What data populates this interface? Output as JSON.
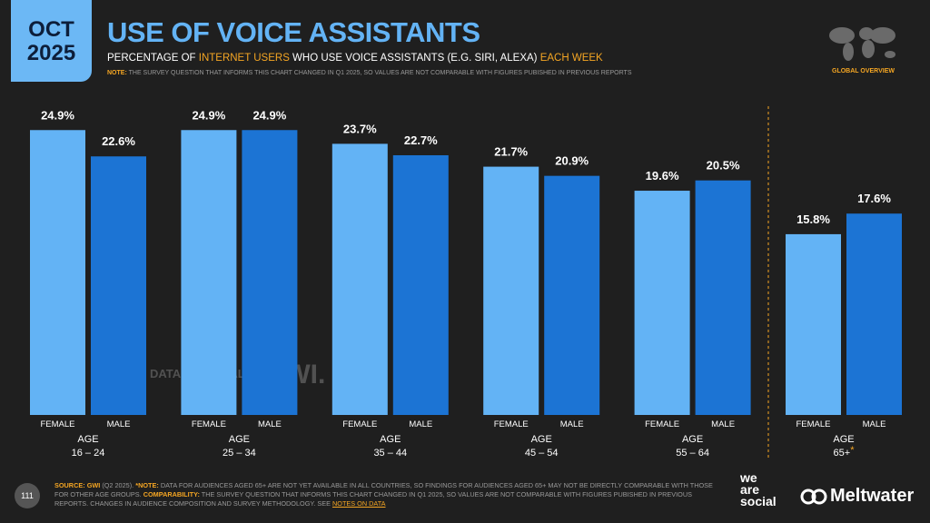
{
  "header": {
    "date_month": "OCT",
    "date_year": "2025",
    "title": "USE OF VOICE ASSISTANTS",
    "subtitle_parts": [
      "PERCENTAGE OF ",
      "INTERNET USERS",
      " WHO USE VOICE ASSISTANTS (E.G. SIRI, ALEXA) ",
      "EACH WEEK"
    ],
    "note_label": "NOTE:",
    "note": "THE SURVEY QUESTION THAT INFORMS THIS CHART CHANGED IN Q1 2025, SO VALUES ARE NOT COMPARABLE WITH FIGURES PUBISHED IN PREVIOUS REPORTS",
    "section": "GLOBAL OVERVIEW"
  },
  "chart_data": {
    "type": "bar",
    "categories": [
      "16 – 24",
      "25 – 34",
      "35 – 44",
      "45 – 54",
      "55 – 64",
      "65+"
    ],
    "category_title": "AGE",
    "footnote_marks": [
      null,
      null,
      null,
      null,
      null,
      "*"
    ],
    "series": [
      {
        "name": "FEMALE",
        "color": "#63b3f5",
        "values": [
          24.9,
          24.9,
          23.7,
          21.7,
          19.6,
          15.8
        ],
        "value_labels": [
          "24.9%",
          "24.9%",
          "23.7%",
          "21.7%",
          "19.6%",
          "15.8%"
        ]
      },
      {
        "name": "MALE",
        "color": "#1c74d4",
        "values": [
          22.6,
          24.9,
          22.7,
          20.9,
          20.5,
          17.6
        ],
        "value_labels": [
          "22.6%",
          "24.9%",
          "22.7%",
          "20.9%",
          "20.5%",
          "17.6%"
        ]
      }
    ],
    "ylim": [
      0,
      25
    ]
  },
  "watermarks": [
    "DATAREPORTAL",
    "GWI."
  ],
  "footer": {
    "source_label": "SOURCE:",
    "source": "GWI",
    "source_detail": "(Q2 2025).",
    "note_label": "*NOTE:",
    "note": "DATA FOR AUDIENCES AGED 65+ ARE NOT YET AVAILABLE IN ALL COUNTRIES, SO FINDINGS FOR AUDIENCES AGED 65+ MAY NOT BE DIRECTLY COMPARABLE WITH THOSE FOR OTHER AGE GROUPS.",
    "comparability_label": "COMPARABILITY:",
    "comparability": "THE SURVEY QUESTION THAT INFORMS THIS CHART CHANGED IN Q1 2025, SO VALUES ARE NOT COMPARABLE WITH FIGURES PUBISHED IN PREVIOUS REPORTS. CHANGES IN AUDIENCE COMPOSITION AND SURVEY METHODOLOGY. SEE",
    "link": "NOTES ON DATA",
    "page_number": "111",
    "brand_1": [
      "we",
      "are",
      "social"
    ],
    "brand_2": "Meltwater"
  }
}
